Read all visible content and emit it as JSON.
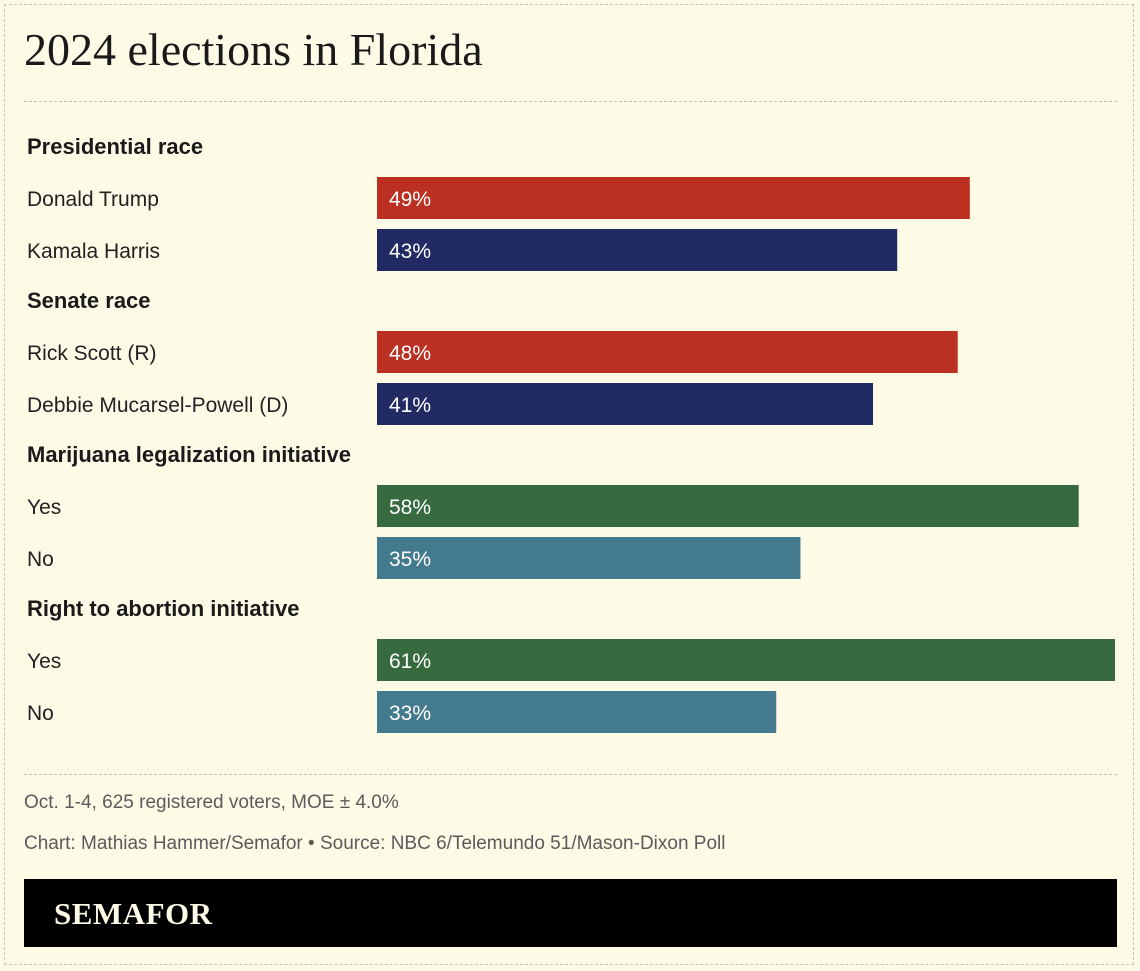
{
  "header": {
    "title": "2024 elections in Florida"
  },
  "colors": {
    "republican": "#bb3020",
    "democrat": "#222a63",
    "yes": "#376b3f",
    "no": "#447a8d",
    "bar_label": "#ffffff"
  },
  "chart_data": {
    "type": "bar",
    "orientation": "horizontal",
    "value_format": "percent",
    "xlim": [
      0,
      61
    ],
    "groups": [
      {
        "title": "Presidential race",
        "items": [
          {
            "label": "Donald Trump",
            "value": 49,
            "display": "49%",
            "color_key": "republican"
          },
          {
            "label": "Kamala Harris",
            "value": 43,
            "display": "43%",
            "color_key": "democrat"
          }
        ]
      },
      {
        "title": "Senate race",
        "items": [
          {
            "label": "Rick Scott (R)",
            "value": 48,
            "display": "48%",
            "color_key": "republican"
          },
          {
            "label": "Debbie Mucarsel-Powell (D)",
            "value": 41,
            "display": "41%",
            "color_key": "democrat"
          }
        ]
      },
      {
        "title": "Marijuana legalization initiative",
        "items": [
          {
            "label": "Yes",
            "value": 58,
            "display": "58%",
            "color_key": "yes"
          },
          {
            "label": "No",
            "value": 35,
            "display": "35%",
            "color_key": "no"
          }
        ]
      },
      {
        "title": "Right to abortion initiative",
        "items": [
          {
            "label": "Yes",
            "value": 61,
            "display": "61%",
            "color_key": "yes"
          },
          {
            "label": "No",
            "value": 33,
            "display": "33%",
            "color_key": "no"
          }
        ]
      }
    ]
  },
  "footer": {
    "note": "Oct. 1-4, 625 registered voters, MOE ± 4.0%",
    "credit": "Chart: Mathias Hammer/Semafor • Source: NBC 6/Telemundo 51/Mason-Dixon Poll"
  },
  "brand": {
    "name": "SEMAFOR"
  }
}
